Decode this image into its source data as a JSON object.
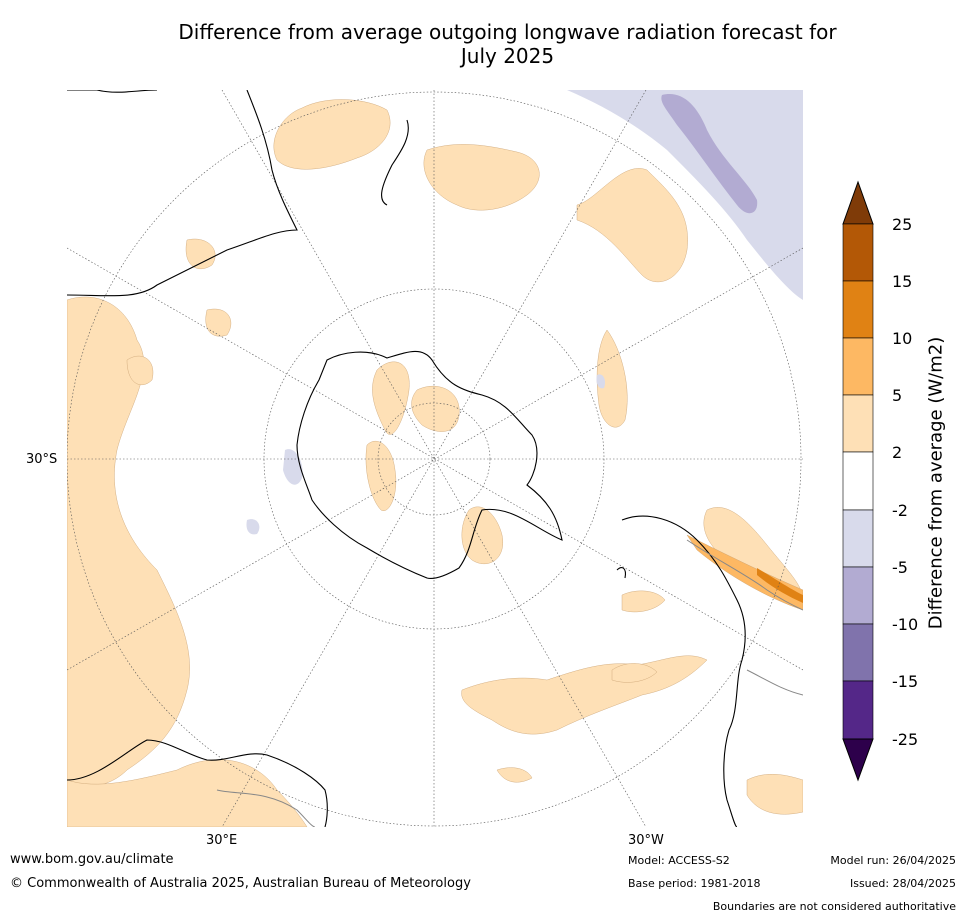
{
  "title_line1": "Difference from average outgoing longwave radiation forecast for",
  "title_line2": "July 2025",
  "map": {
    "projection": "south-polar-stereographic",
    "label_lat": "30°S",
    "label_lon_east": "30°E",
    "label_lon_west": "30°W"
  },
  "colorbar": {
    "title": "Difference from average (W/m2)",
    "ticks": [
      "25",
      "15",
      "10",
      "5",
      "2",
      "-2",
      "-5",
      "-10",
      "-15",
      "-25"
    ],
    "colors": {
      "above_25": "#7f3b08",
      "15_25": "#b35806",
      "10_15": "#e08214",
      "5_10": "#fdb863",
      "2_5": "#fee0b6",
      "neutral": "#ffffff",
      "m5_m2": "#d8daeb",
      "m10_m5": "#b2abd2",
      "m15_m10": "#8073ac",
      "m25_m15": "#542788",
      "below_m25": "#2d004b"
    }
  },
  "footer": {
    "website": "www.bom.gov.au/climate",
    "copyright": "© Commonwealth of Australia 2025, Australian Bureau of Meteorology",
    "model": "Model: ACCESS-S2",
    "base_period": "Base period: 1981-2018",
    "model_run": "Model run: 26/04/2025",
    "issued": "Issued: 28/04/2025",
    "disclaimer": "Boundaries are not considered authoritative"
  }
}
